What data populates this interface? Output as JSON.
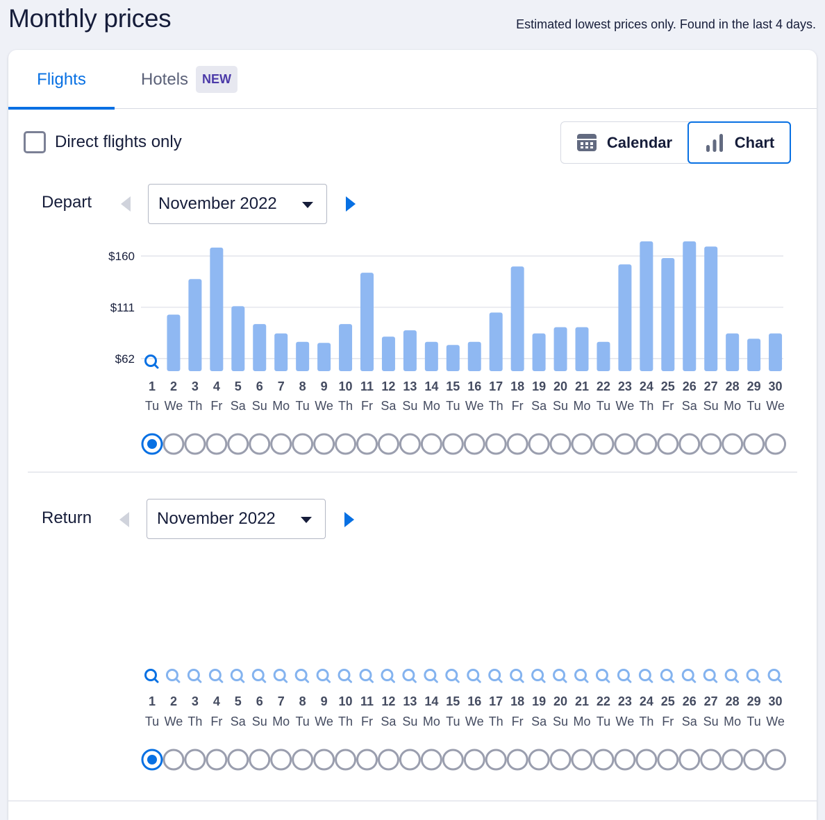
{
  "header": {
    "title": "Monthly prices",
    "note": "Estimated lowest prices only. Found in the last 4 days."
  },
  "tabs": {
    "flights_label": "Flights",
    "hotels_label": "Hotels",
    "hotels_badge": "NEW",
    "active": "Flights"
  },
  "filters": {
    "direct_only_label": "Direct flights only",
    "direct_only_checked": false
  },
  "view_toggle": {
    "calendar_label": "Calendar",
    "chart_label": "Chart",
    "active": "Chart"
  },
  "depart": {
    "label": "Depart",
    "month": "November 2022",
    "selected_day": 1
  },
  "return": {
    "label": "Return",
    "month": "November 2022",
    "selected_day": 1
  },
  "days": [
    {
      "d": "1",
      "w": "Tu"
    },
    {
      "d": "2",
      "w": "We"
    },
    {
      "d": "3",
      "w": "Th"
    },
    {
      "d": "4",
      "w": "Fr"
    },
    {
      "d": "5",
      "w": "Sa"
    },
    {
      "d": "6",
      "w": "Su"
    },
    {
      "d": "7",
      "w": "Mo"
    },
    {
      "d": "8",
      "w": "Tu"
    },
    {
      "d": "9",
      "w": "We"
    },
    {
      "d": "10",
      "w": "Th"
    },
    {
      "d": "11",
      "w": "Fr"
    },
    {
      "d": "12",
      "w": "Sa"
    },
    {
      "d": "13",
      "w": "Su"
    },
    {
      "d": "14",
      "w": "Mo"
    },
    {
      "d": "15",
      "w": "Tu"
    },
    {
      "d": "16",
      "w": "We"
    },
    {
      "d": "17",
      "w": "Th"
    },
    {
      "d": "18",
      "w": "Fr"
    },
    {
      "d": "19",
      "w": "Sa"
    },
    {
      "d": "20",
      "w": "Su"
    },
    {
      "d": "21",
      "w": "Mo"
    },
    {
      "d": "22",
      "w": "Tu"
    },
    {
      "d": "23",
      "w": "We"
    },
    {
      "d": "24",
      "w": "Th"
    },
    {
      "d": "25",
      "w": "Fr"
    },
    {
      "d": "26",
      "w": "Sa"
    },
    {
      "d": "27",
      "w": "Su"
    },
    {
      "d": "28",
      "w": "Mo"
    },
    {
      "d": "29",
      "w": "Tu"
    },
    {
      "d": "30",
      "w": "We"
    }
  ],
  "colors": {
    "accent": "#0770e3",
    "bar": "#8fb8f2",
    "search_icon_light": "#84b3ef",
    "radio_border": "#9a9eae"
  },
  "icons": {
    "calendar": "calendar-icon",
    "chart": "bar-chart-icon",
    "no_price": "search-icon",
    "prev": "triangle-left-icon",
    "next": "triangle-right-icon",
    "dropdown": "caret-down-icon"
  },
  "chart_data": {
    "type": "bar",
    "title": "",
    "xlabel": "",
    "ylabel": "",
    "y_ticks": [
      "$160",
      "$111",
      "$62"
    ],
    "y_tick_values": [
      160,
      111,
      62
    ],
    "ylim": [
      52,
      164
    ],
    "grid": true,
    "categories": [
      "1",
      "2",
      "3",
      "4",
      "5",
      "6",
      "7",
      "8",
      "9",
      "10",
      "11",
      "12",
      "13",
      "14",
      "15",
      "16",
      "17",
      "18",
      "19",
      "20",
      "21",
      "22",
      "23",
      "24",
      "25",
      "26",
      "27",
      "28",
      "29",
      "30"
    ],
    "series": [
      {
        "values": [
          null,
          104,
          138,
          168,
          112,
          95,
          86,
          78,
          77,
          95,
          144,
          83,
          89,
          78,
          75,
          78,
          106,
          150,
          86,
          92,
          92,
          78,
          152,
          174,
          158,
          174,
          169,
          86,
          81,
          86
        ]
      }
    ],
    "missing_marker": "search-icon"
  }
}
